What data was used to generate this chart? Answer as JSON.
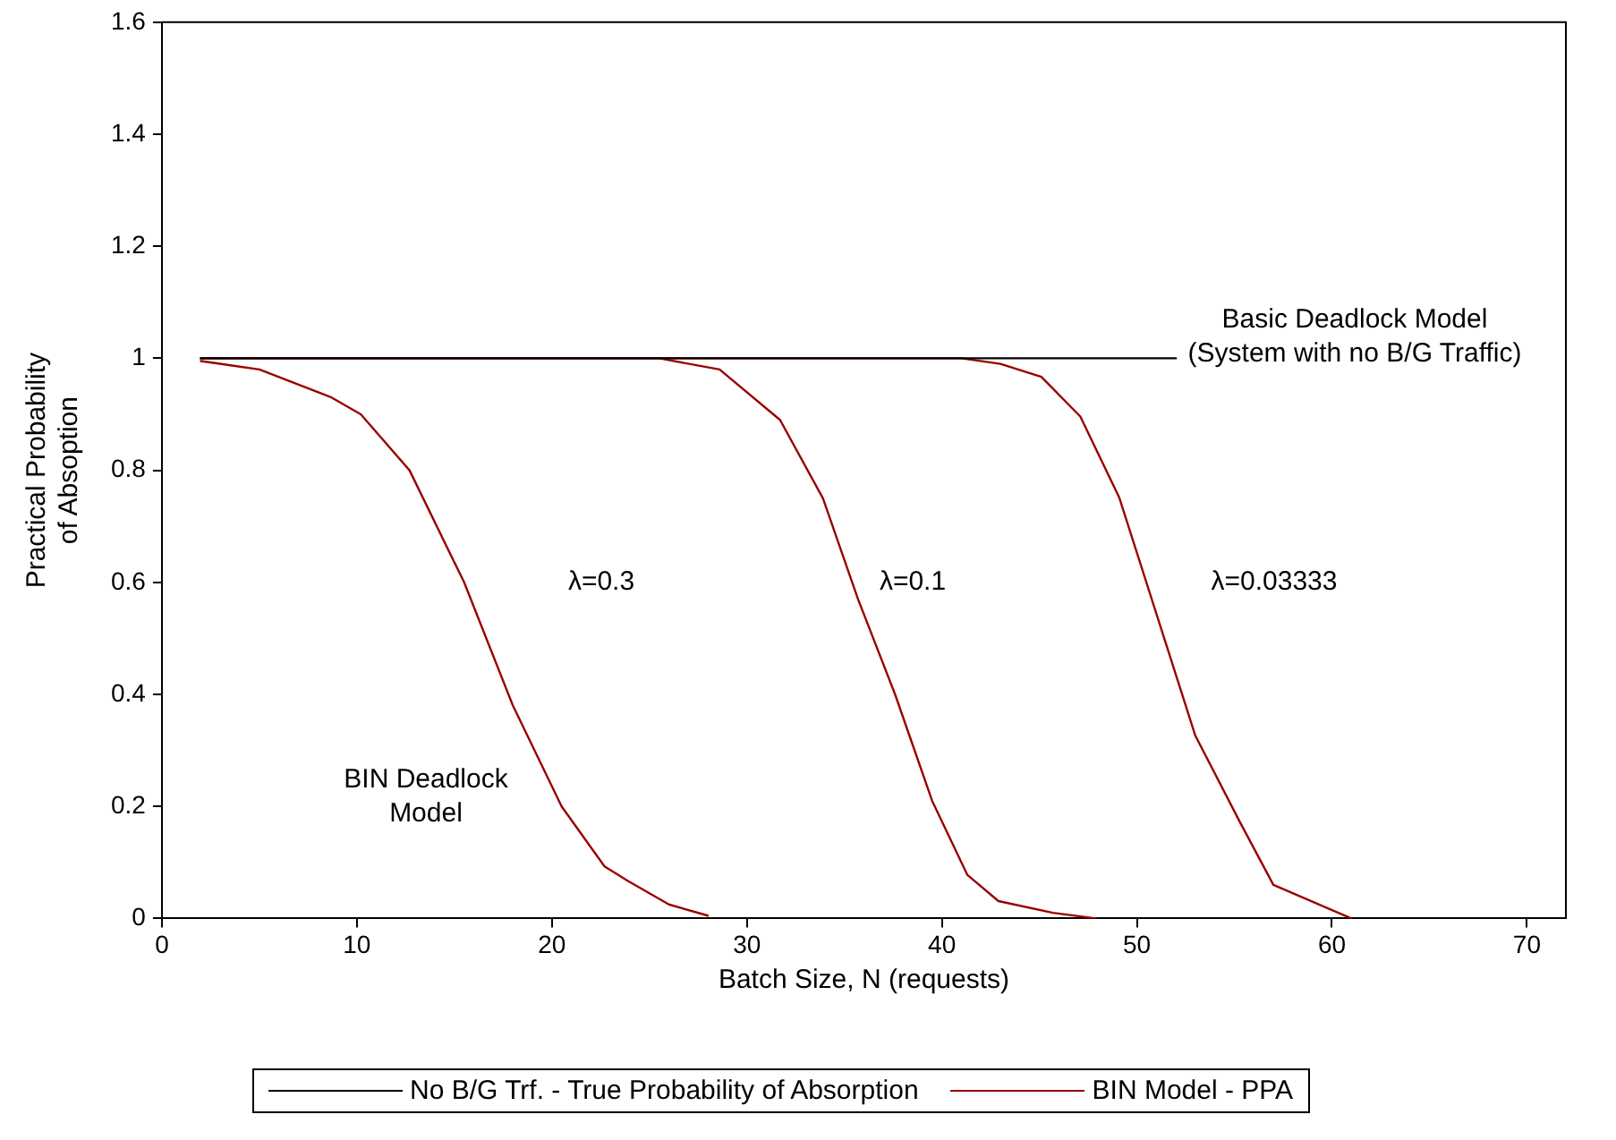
{
  "chart_data": {
    "type": "line",
    "xlabel": "Batch Size, N (requests)",
    "ylabel": "Practical Probability\nof Absoption",
    "xlim": [
      0,
      72
    ],
    "xticks": [
      0,
      10,
      20,
      30,
      40,
      50,
      60,
      70
    ],
    "ylim": [
      0,
      1.6
    ],
    "yticks": [
      0,
      0.2,
      0.4,
      0.6,
      0.8,
      1,
      1.2,
      1.4,
      1.6
    ],
    "legend": "bottom",
    "marker": "none",
    "line_style": "solid",
    "series": [
      {
        "name": "No B/G Trf. - True Probability of Absorption",
        "color": "#000000",
        "x": [
          2,
          52
        ],
        "values": [
          1,
          1
        ]
      },
      {
        "name": "BIN Model - PPA",
        "color": "#990000",
        "x": [
          2,
          5,
          8.7,
          10.2,
          12.7,
          15.5,
          18,
          20.5,
          22.7,
          23.9,
          26,
          28
        ],
        "values": [
          0.995,
          0.98,
          0.93,
          0.9,
          0.8,
          0.6,
          0.38,
          0.2,
          0.093,
          0.067,
          0.025,
          0.005
        ]
      },
      {
        "color": "#990000",
        "x": [
          2,
          25.5,
          28.6,
          31.7,
          33.9,
          35.7,
          37.6,
          39.5,
          41.3,
          42.9,
          45.7,
          47.9
        ],
        "values": [
          1,
          1,
          0.98,
          0.89,
          0.75,
          0.57,
          0.4,
          0.21,
          0.078,
          0.031,
          0.01,
          0
        ]
      },
      {
        "color": "#990000",
        "x": [
          2,
          41,
          43,
          45.1,
          47.1,
          49.1,
          53,
          55.3,
          57,
          61
        ],
        "values": [
          1,
          1,
          0.99,
          0.967,
          0.896,
          0.751,
          0.326,
          0.171,
          0.06,
          0
        ]
      }
    ],
    "annotations": [
      "λ=0.3",
      "λ=0.1",
      "λ=0.03333",
      "BIN Deadlock\nModel",
      "Basic Deadlock Model\n(System with no B/G Traffic)"
    ]
  }
}
